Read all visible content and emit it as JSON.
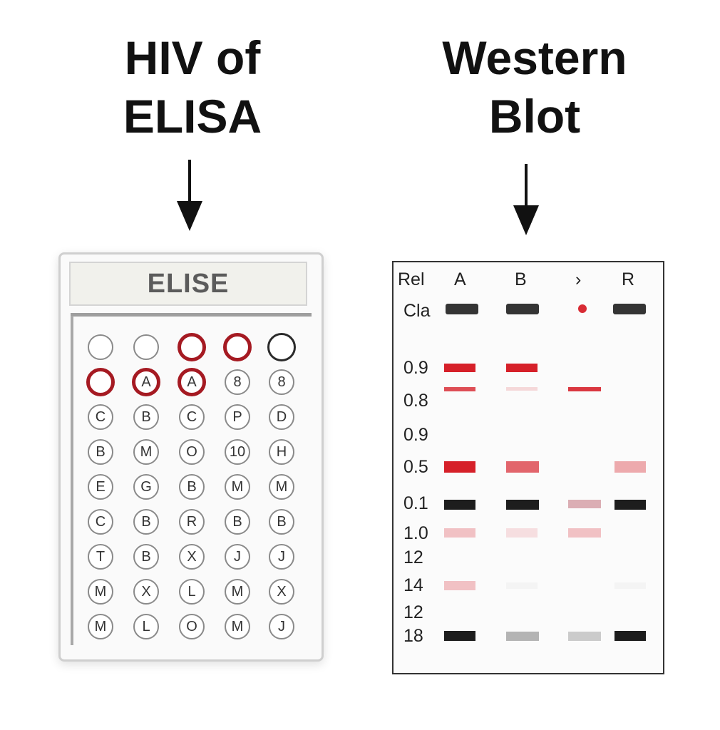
{
  "elisa_section": {
    "title_line1": "HIV of",
    "title_line2": "ELISA",
    "plate_label": "ELISE",
    "rows": [
      [
        {
          "t": "",
          "s": "empty"
        },
        {
          "t": "",
          "s": "empty"
        },
        {
          "t": "",
          "s": "pos"
        },
        {
          "t": "",
          "s": "pos"
        },
        {
          "t": "",
          "s": "dark"
        }
      ],
      [
        {
          "t": "",
          "s": "pos"
        },
        {
          "t": "A",
          "s": "pos"
        },
        {
          "t": "A",
          "s": "pos"
        },
        {
          "t": "8",
          "s": "empty"
        },
        {
          "t": "8",
          "s": "empty"
        }
      ],
      [
        {
          "t": "C",
          "s": "empty"
        },
        {
          "t": "B",
          "s": "empty"
        },
        {
          "t": "C",
          "s": "empty"
        },
        {
          "t": "P",
          "s": "empty"
        },
        {
          "t": "D",
          "s": "empty"
        }
      ],
      [
        {
          "t": "B",
          "s": "empty"
        },
        {
          "t": "M",
          "s": "empty"
        },
        {
          "t": "O",
          "s": "empty"
        },
        {
          "t": "10",
          "s": "empty"
        },
        {
          "t": "H",
          "s": "empty"
        }
      ],
      [
        {
          "t": "E",
          "s": "empty"
        },
        {
          "t": "G",
          "s": "empty"
        },
        {
          "t": "B",
          "s": "empty"
        },
        {
          "t": "M",
          "s": "empty"
        },
        {
          "t": "M",
          "s": "empty"
        }
      ],
      [
        {
          "t": "C",
          "s": "empty"
        },
        {
          "t": "B",
          "s": "empty"
        },
        {
          "t": "R",
          "s": "empty"
        },
        {
          "t": "B",
          "s": "empty"
        },
        {
          "t": "B",
          "s": "empty"
        }
      ],
      [
        {
          "t": "T",
          "s": "empty"
        },
        {
          "t": "B",
          "s": "empty"
        },
        {
          "t": "X",
          "s": "empty"
        },
        {
          "t": "J",
          "s": "empty"
        },
        {
          "t": "J",
          "s": "empty"
        }
      ],
      [
        {
          "t": "M",
          "s": "empty"
        },
        {
          "t": "X",
          "s": "empty"
        },
        {
          "t": "L",
          "s": "empty"
        },
        {
          "t": "M",
          "s": "empty"
        },
        {
          "t": "X",
          "s": "empty"
        }
      ],
      [
        {
          "t": "M",
          "s": "empty"
        },
        {
          "t": "L",
          "s": "empty"
        },
        {
          "t": "O",
          "s": "empty"
        },
        {
          "t": "M",
          "s": "empty"
        },
        {
          "t": "J",
          "s": "empty"
        }
      ]
    ]
  },
  "western_blot": {
    "title_line1": "Western",
    "title_line2": "Blot",
    "corner_label": "Rel",
    "row_label": "Cla",
    "lanes": [
      "A",
      "B",
      "›",
      "R"
    ],
    "markers": [
      "0.9",
      "0.8",
      "0.9",
      "0.5",
      "0.1",
      "1.0",
      "12",
      "14",
      "12",
      "18"
    ],
    "colors": {
      "red": "#d4141e",
      "black": "#111111"
    }
  }
}
